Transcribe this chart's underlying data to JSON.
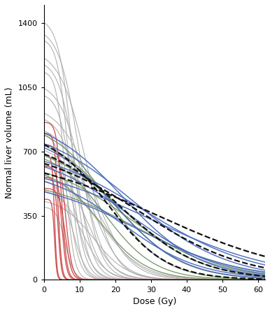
{
  "xlabel": "Dose (Gy)",
  "ylabel": "Normal liver volume (mL)",
  "xlim": [
    0,
    62
  ],
  "ylim": [
    0,
    1500
  ],
  "yticks": [
    0,
    350,
    700,
    1050,
    1400
  ],
  "xticks": [
    0,
    10,
    20,
    30,
    40,
    50,
    60
  ],
  "figsize": [
    3.86,
    4.45
  ],
  "dpi": 100,
  "gray_color": "#aaaaaa",
  "gray_lw": 0.8,
  "gray_alpha": 0.9,
  "red_color": "#cc4444",
  "red_lw": 1.0,
  "red_alpha": 0.9,
  "blue_color": "#4466bb",
  "blue_lw": 1.1,
  "blue_alpha": 0.9,
  "green_color": "#6a8a5a",
  "green_lw": 1.0,
  "green_alpha": 0.85,
  "black_color": "#111111",
  "black_lw": 1.6,
  "black_alpha": 1.0,
  "gray_curves": [
    [
      1430,
      8,
      4.0
    ],
    [
      1380,
      10,
      3.5
    ],
    [
      1320,
      7,
      4.5
    ],
    [
      1260,
      12,
      3.2
    ],
    [
      1200,
      9,
      3.8
    ],
    [
      1140,
      6,
      5.0
    ],
    [
      1080,
      11,
      3.4
    ],
    [
      1020,
      8,
      4.2
    ],
    [
      960,
      14,
      2.9
    ],
    [
      900,
      10,
      3.6
    ],
    [
      850,
      13,
      3.1
    ],
    [
      800,
      7,
      4.4
    ],
    [
      750,
      15,
      2.8
    ],
    [
      700,
      9,
      3.9
    ],
    [
      650,
      12,
      3.3
    ],
    [
      600,
      16,
      2.7
    ],
    [
      550,
      8,
      4.1
    ],
    [
      500,
      11,
      3.5
    ],
    [
      450,
      14,
      3.0
    ],
    [
      400,
      6,
      4.8
    ]
  ],
  "red_curves": [
    [
      860,
      5,
      7.0
    ],
    [
      800,
      4,
      8.0
    ],
    [
      740,
      6,
      6.5
    ],
    [
      680,
      3,
      9.0
    ],
    [
      620,
      5,
      7.5
    ],
    [
      560,
      4,
      8.5
    ],
    [
      500,
      6,
      7.0
    ],
    [
      440,
      3,
      9.5
    ]
  ],
  "blue_curves": [
    [
      910,
      22,
      2.0
    ],
    [
      860,
      25,
      1.85
    ],
    [
      810,
      20,
      2.1
    ],
    [
      760,
      28,
      1.75
    ],
    [
      710,
      24,
      1.9
    ],
    [
      660,
      30,
      1.65
    ],
    [
      610,
      22,
      2.0
    ],
    [
      560,
      26,
      1.8
    ]
  ],
  "green_curves": [
    [
      870,
      18,
      2.3
    ],
    [
      820,
      20,
      2.15
    ],
    [
      770,
      22,
      2.0
    ],
    [
      720,
      17,
      2.4
    ],
    [
      670,
      24,
      1.95
    ],
    [
      620,
      16,
      2.5
    ],
    [
      570,
      26,
      1.85
    ]
  ],
  "black_curves": [
    [
      820,
      18,
      2.2
    ],
    [
      780,
      22,
      2.0
    ],
    [
      740,
      27,
      1.8
    ],
    [
      700,
      32,
      1.6
    ]
  ]
}
